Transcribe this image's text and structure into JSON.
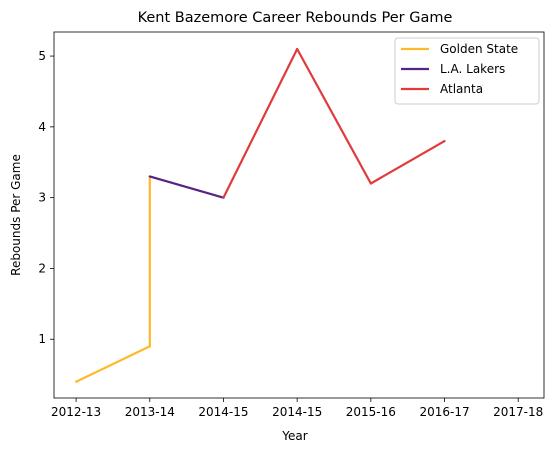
{
  "chart_data": {
    "type": "line",
    "title": "Kent Bazemore Career Rebounds Per Game",
    "xlabel": "Year",
    "ylabel": "Rebounds Per Game",
    "x_ticks": [
      "2012-13",
      "2013-14",
      "2014-15",
      "2014-15",
      "2015-16",
      "2016-17",
      "2017-18"
    ],
    "x_range": [
      -0.3,
      6.35
    ],
    "y_ticks": [
      1,
      2,
      3,
      4,
      5
    ],
    "ylim": [
      0.17,
      5.34
    ],
    "grid": false,
    "legend_position": "top-right",
    "series": [
      {
        "name": "Golden State",
        "color": "#FDB927",
        "points": [
          {
            "x": 0,
            "y": 0.4
          },
          {
            "x": 1,
            "y": 0.9
          },
          {
            "x": 1,
            "y": 3.3
          }
        ]
      },
      {
        "name": "L.A. Lakers",
        "color": "#552583",
        "points": [
          {
            "x": 1,
            "y": 3.3
          },
          {
            "x": 2,
            "y": 3.0
          }
        ]
      },
      {
        "name": "Atlanta",
        "color": "#E03A3E",
        "points": [
          {
            "x": 2,
            "y": 3.0
          },
          {
            "x": 3,
            "y": 5.1
          },
          {
            "x": 4,
            "y": 3.2
          },
          {
            "x": 5,
            "y": 3.8
          }
        ]
      }
    ]
  }
}
